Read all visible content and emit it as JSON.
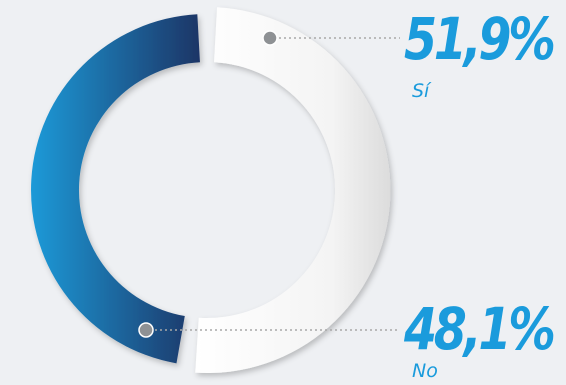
{
  "colors": {
    "background": "#eef0f3",
    "accent_text": "#1a9bdc",
    "blue_dark": "#1c3566",
    "blue_light": "#1d9ad8",
    "white_segment": "#f7f7f7",
    "leader": "#a8a8a8",
    "marker": "#8e9194"
  },
  "chart_data": {
    "type": "pie",
    "title": "",
    "categories": [
      "Sí",
      "No"
    ],
    "values": [
      51.9,
      48.1
    ],
    "value_labels": [
      "51,9%",
      "48,1%"
    ],
    "unit": "%",
    "legend": "right"
  }
}
